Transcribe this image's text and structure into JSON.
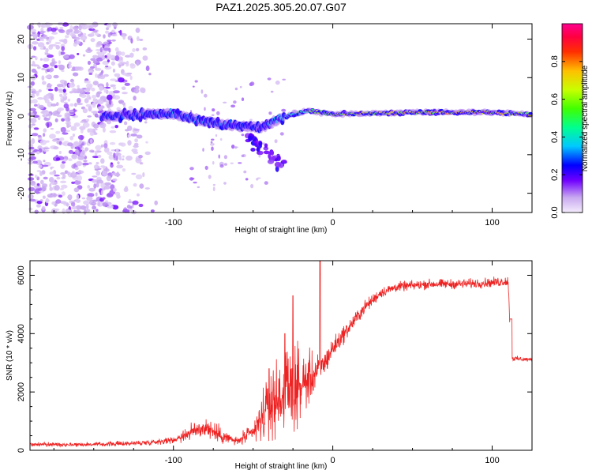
{
  "chart_data": [
    {
      "type": "heatmap",
      "title": "PAZ1.2025.305.20.07.G07",
      "xlabel": "Height of straight line (km)",
      "ylabel": "Frequency (Hz)",
      "xlim": [
        -190,
        125
      ],
      "ylim": [
        -25,
        24
      ],
      "xticks": [
        -100,
        0,
        100
      ],
      "yticks": [
        -20,
        -10,
        0,
        10,
        20
      ],
      "colorbar": {
        "label": "Normalized spectral amplitude",
        "range": [
          0.0,
          1.0
        ],
        "ticks": [
          0.0,
          0.2,
          0.4,
          0.6,
          0.8
        ],
        "colormap": [
          "#e8d8f8",
          "#c8a8f0",
          "#9a50f0",
          "#7000ff",
          "#0000ff",
          "#00c8ff",
          "#00ffa0",
          "#40ff00",
          "#c8ff00",
          "#ffc800",
          "#ff4000",
          "#ff0040",
          "#ff0090"
        ]
      },
      "ridge": [
        {
          "x": -140,
          "f": 0.0,
          "amp": 0.3
        },
        {
          "x": -120,
          "f": 0.5,
          "amp": 0.3
        },
        {
          "x": -100,
          "f": 0.5,
          "amp": 0.35
        },
        {
          "x": -80,
          "f": -1.5,
          "amp": 0.35
        },
        {
          "x": -60,
          "f": -2.5,
          "amp": 0.3
        },
        {
          "x": -45,
          "f": -3.0,
          "amp": 0.3
        },
        {
          "x": -30,
          "f": 0.0,
          "amp": 0.45
        },
        {
          "x": -15,
          "f": 1.5,
          "amp": 0.65
        },
        {
          "x": 0,
          "f": 0.5,
          "amp": 0.75
        },
        {
          "x": 50,
          "f": 1.0,
          "amp": 0.85
        },
        {
          "x": 100,
          "f": 1.0,
          "amp": 0.9
        },
        {
          "x": 125,
          "f": 0.5,
          "amp": 0.75
        }
      ]
    },
    {
      "type": "line",
      "xlabel": "Height of straight line (km)",
      "ylabel": "SNR (10 * v/v)",
      "xlim": [
        -190,
        125
      ],
      "ylim": [
        0,
        6500
      ],
      "xticks": [
        -100,
        0,
        100
      ],
      "yticks": [
        0,
        2000,
        4000,
        6000
      ],
      "color": "#ee2222",
      "envelope": {
        "x": [
          -190,
          -150,
          -120,
          -100,
          -90,
          -80,
          -70,
          -60,
          -50,
          -40,
          -30,
          -20,
          -10,
          -5,
          0,
          10,
          20,
          30,
          40,
          60,
          80,
          100,
          110,
          112,
          125
        ],
        "mean": [
          200,
          200,
          250,
          350,
          600,
          800,
          500,
          300,
          600,
          1500,
          2000,
          2200,
          2700,
          3000,
          3500,
          4200,
          4900,
          5400,
          5600,
          5700,
          5700,
          5750,
          5800,
          3150,
          3100
        ],
        "noise": [
          80,
          80,
          100,
          120,
          300,
          400,
          300,
          150,
          400,
          1200,
          1500,
          1300,
          700,
          500,
          400,
          300,
          250,
          200,
          180,
          180,
          180,
          180,
          200,
          100,
          80
        ]
      },
      "spikes": [
        {
          "x": -8,
          "y": 6500
        },
        {
          "x": -25,
          "y": 5300
        },
        {
          "x": -30,
          "y": 4000
        },
        {
          "x": -40,
          "y": 2800
        }
      ]
    }
  ]
}
